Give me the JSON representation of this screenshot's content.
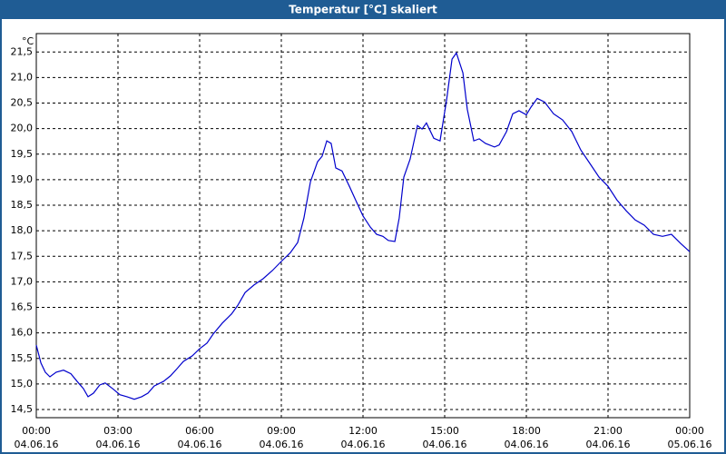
{
  "chart_data": {
    "type": "line",
    "title": "Temperatur [°C] skaliert",
    "y_unit": "°C",
    "x": [
      0,
      0.17,
      0.33,
      0.5,
      0.73,
      1.0,
      1.27,
      1.5,
      1.73,
      1.9,
      2.1,
      2.33,
      2.53,
      2.8,
      3.07,
      3.33,
      3.6,
      3.87,
      4.1,
      4.33,
      4.67,
      4.93,
      5.17,
      5.4,
      5.73,
      6.0,
      6.27,
      6.5,
      6.83,
      7.17,
      7.4,
      7.67,
      8.0,
      8.33,
      8.67,
      9.0,
      9.33,
      9.6,
      9.83,
      10.07,
      10.33,
      10.5,
      10.67,
      10.83,
      11.0,
      11.23,
      11.5,
      11.73,
      12.0,
      12.27,
      12.5,
      12.73,
      12.93,
      13.17,
      13.33,
      13.5,
      13.73,
      14.0,
      14.17,
      14.33,
      14.6,
      14.83,
      15.07,
      15.27,
      15.43,
      15.67,
      15.83,
      16.07,
      16.27,
      16.5,
      16.83,
      17.0,
      17.27,
      17.5,
      17.73,
      18.0,
      18.17,
      18.4,
      18.67,
      19.0,
      19.33,
      19.67,
      20.0,
      20.33,
      20.67,
      21.0,
      21.33,
      21.67,
      22.0,
      22.33,
      22.67,
      23.0,
      23.33,
      23.67,
      24.0
    ],
    "series": [
      {
        "color": "#0000cc",
        "values": [
          15.76,
          15.41,
          15.23,
          15.14,
          15.23,
          15.27,
          15.2,
          15.05,
          14.91,
          14.75,
          14.82,
          14.98,
          15.02,
          14.91,
          14.79,
          14.75,
          14.7,
          14.75,
          14.82,
          14.96,
          15.05,
          15.16,
          15.3,
          15.44,
          15.55,
          15.69,
          15.8,
          15.98,
          16.19,
          16.37,
          16.54,
          16.79,
          16.94,
          17.06,
          17.22,
          17.4,
          17.57,
          17.77,
          18.25,
          18.96,
          19.35,
          19.46,
          19.76,
          19.71,
          19.23,
          19.17,
          18.87,
          18.6,
          18.29,
          18.07,
          17.93,
          17.89,
          17.81,
          17.79,
          18.25,
          19.05,
          19.4,
          20.06,
          19.99,
          20.11,
          19.81,
          19.76,
          20.56,
          21.36,
          21.48,
          21.09,
          20.38,
          19.76,
          19.8,
          19.71,
          19.64,
          19.68,
          19.94,
          20.29,
          20.35,
          20.27,
          20.42,
          20.59,
          20.52,
          20.29,
          20.17,
          19.94,
          19.58,
          19.32,
          19.05,
          18.87,
          18.6,
          18.39,
          18.21,
          18.11,
          17.93,
          17.89,
          17.93,
          17.75,
          17.59
        ]
      }
    ],
    "xlim": [
      0,
      24
    ],
    "xticks": [
      {
        "value": 0,
        "label": "00:00",
        "date": "04.06.16"
      },
      {
        "value": 3,
        "label": "03:00",
        "date": "04.06.16"
      },
      {
        "value": 6,
        "label": "06:00",
        "date": "04.06.16"
      },
      {
        "value": 9,
        "label": "09:00",
        "date": "04.06.16"
      },
      {
        "value": 12,
        "label": "12:00",
        "date": "04.06.16"
      },
      {
        "value": 15,
        "label": "15:00",
        "date": "04.06.16"
      },
      {
        "value": 18,
        "label": "18:00",
        "date": "04.06.16"
      },
      {
        "value": 21,
        "label": "21:00",
        "date": "04.06.16"
      },
      {
        "value": 24,
        "label": "00:00",
        "date": "05.06.16"
      }
    ],
    "ylim": [
      14.34,
      21.86
    ],
    "yticks": [
      {
        "value": 14.5,
        "label": "14,5"
      },
      {
        "value": 15,
        "label": "15,0"
      },
      {
        "value": 15.5,
        "label": "15,5"
      },
      {
        "value": 16,
        "label": "16,0"
      },
      {
        "value": 16.5,
        "label": "16,5"
      },
      {
        "value": 17,
        "label": "17,0"
      },
      {
        "value": 17.5,
        "label": "17,5"
      },
      {
        "value": 18,
        "label": "18,0"
      },
      {
        "value": 18.5,
        "label": "18,5"
      },
      {
        "value": 19,
        "label": "19,0"
      },
      {
        "value": 19.5,
        "label": "19,5"
      },
      {
        "value": 20,
        "label": "20,0"
      },
      {
        "value": 20.5,
        "label": "20,5"
      },
      {
        "value": 21,
        "label": "21,0"
      },
      {
        "value": 21.5,
        "label": "21,5"
      }
    ],
    "grid": true
  }
}
